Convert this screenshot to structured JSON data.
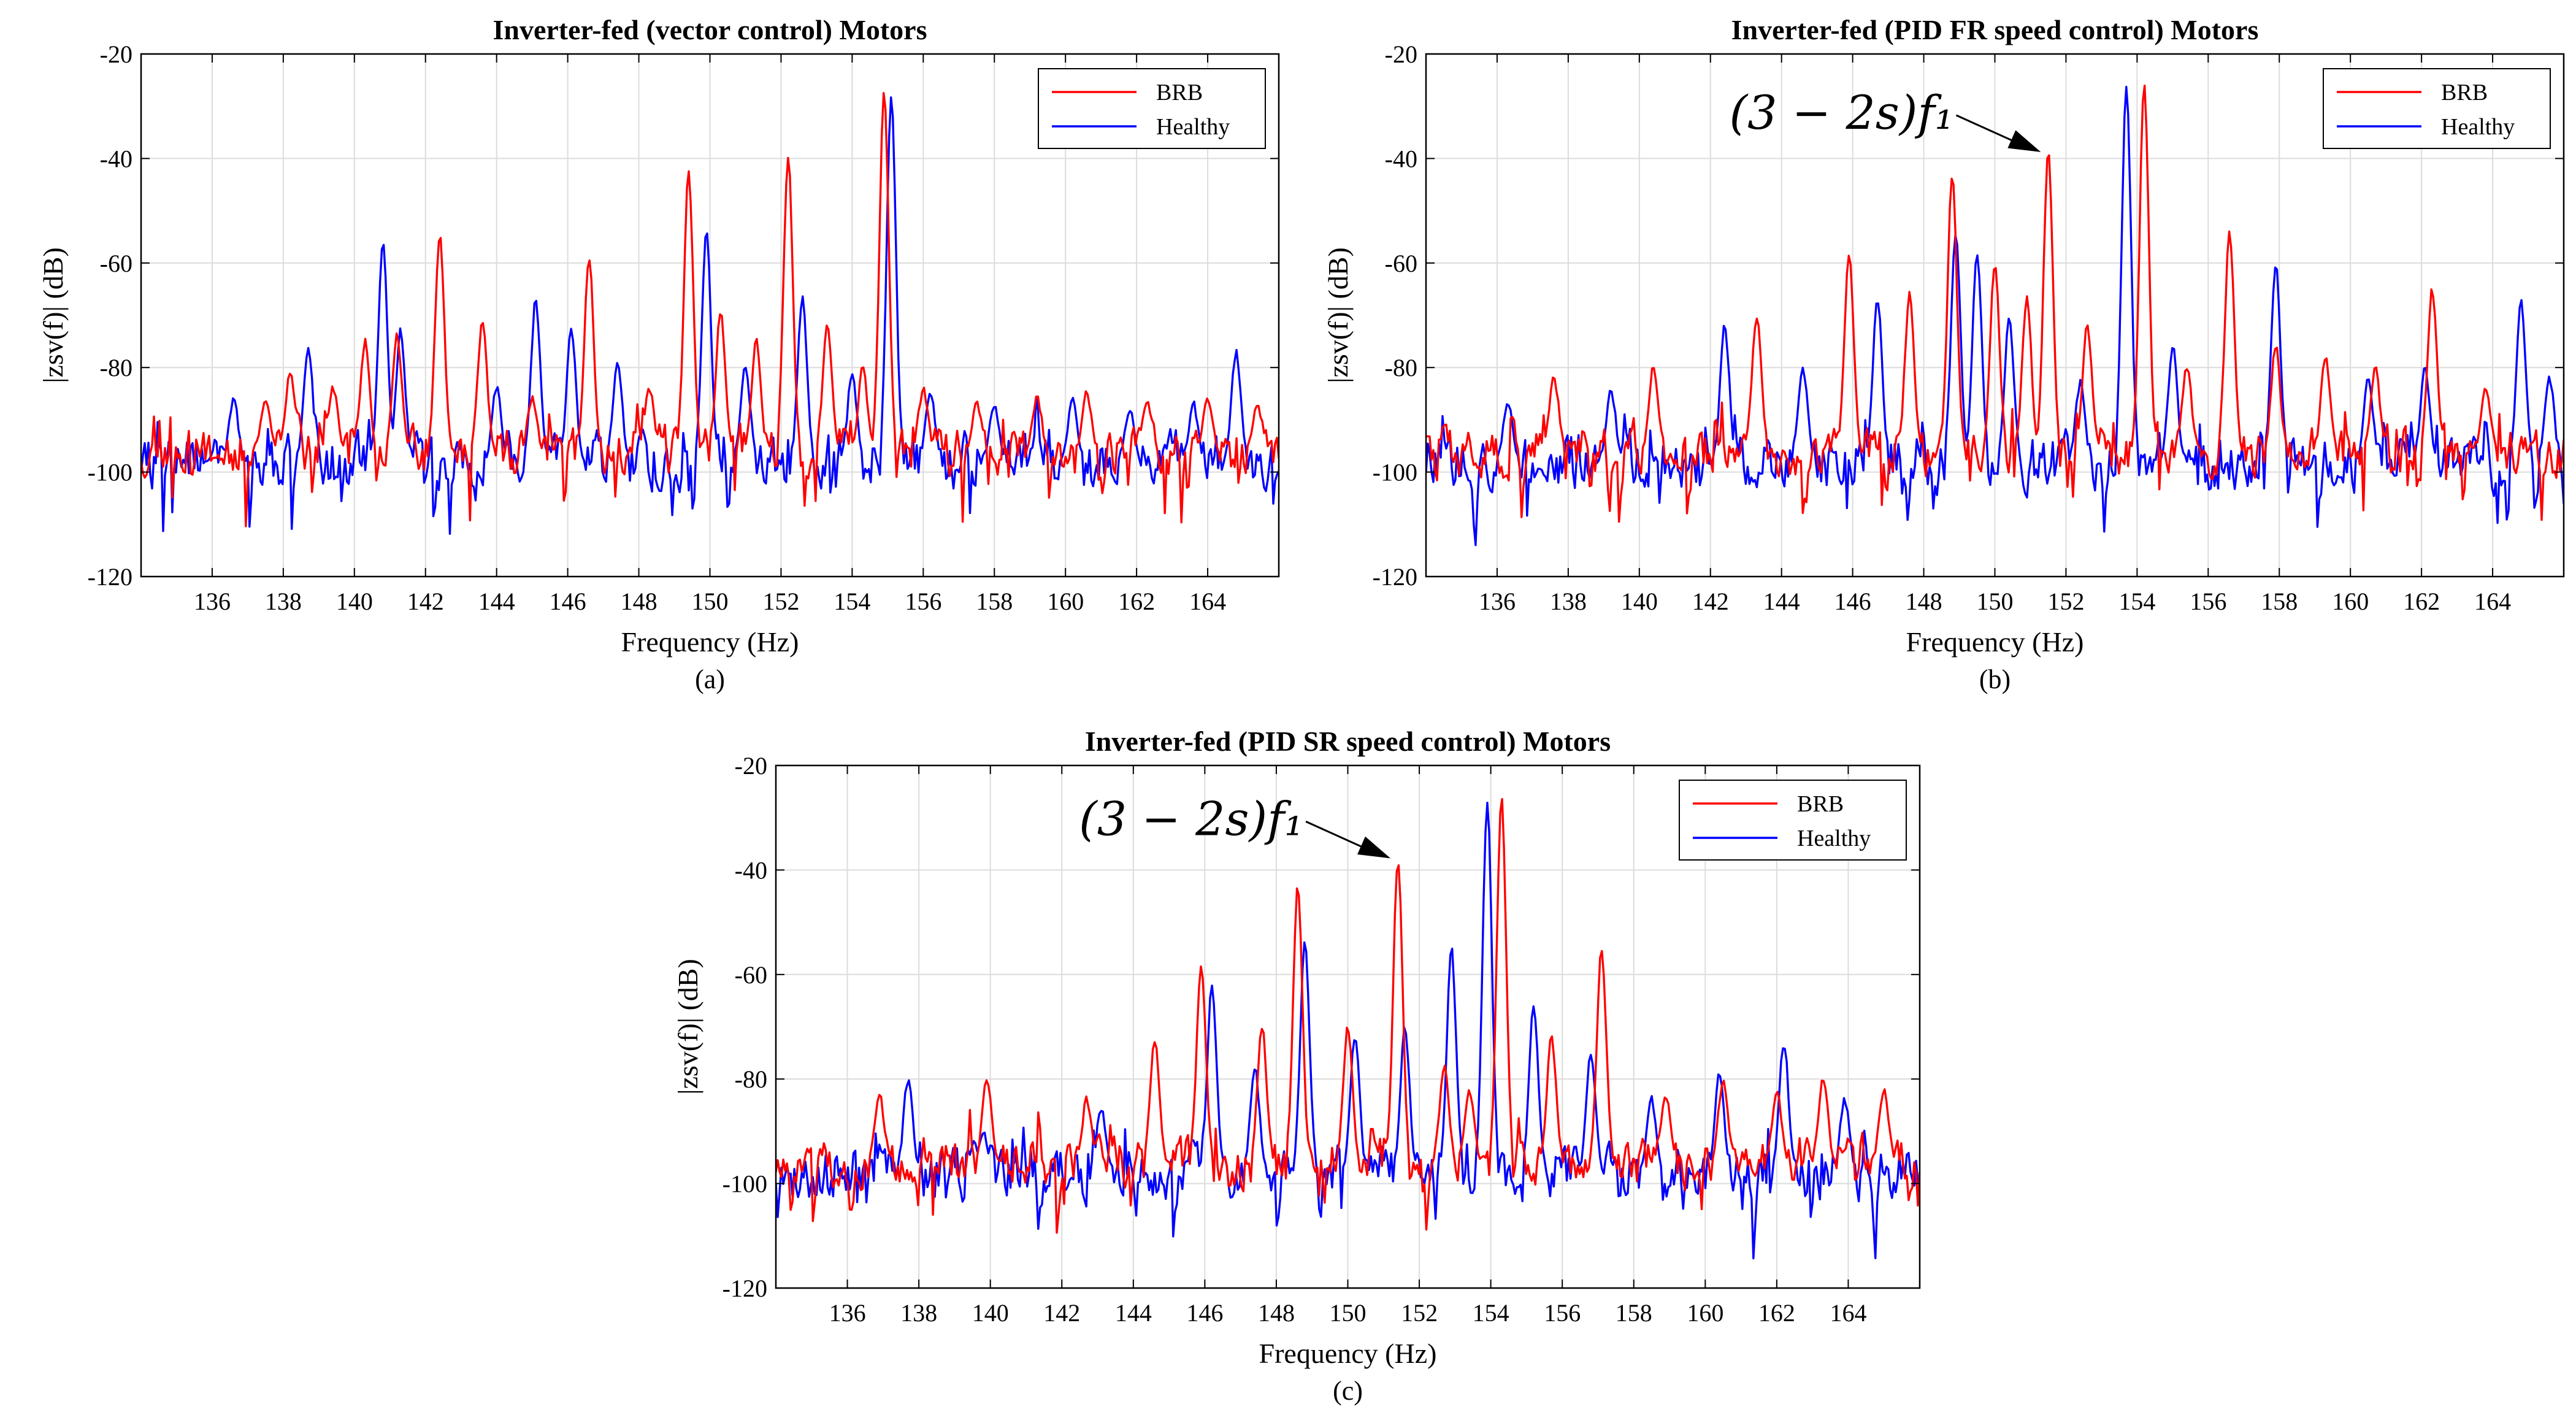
{
  "chart_data": [
    {
      "type": "line",
      "panel_label": "(a)",
      "title": "Inverter-fed (vector control) Motors",
      "xlabel": "Frequency (Hz)",
      "ylabel": "|zsv(f)| (dB)",
      "xlim": [
        134,
        166
      ],
      "ylim": [
        -120,
        -20
      ],
      "xticks": [
        "136",
        "138",
        "140",
        "142",
        "144",
        "146",
        "148",
        "150",
        "152",
        "154",
        "156",
        "158",
        "160",
        "162",
        "164"
      ],
      "yticks": [
        "-20",
        "-40",
        "-60",
        "-80",
        "-100",
        "-120"
      ],
      "grid": true,
      "legend": {
        "position": "top-right",
        "entries": [
          "BRB",
          "Healthy"
        ]
      },
      "annotation": null,
      "series": [
        {
          "name": "BRB",
          "color": "#ff0000",
          "baseline": -96,
          "noise_amp": 7,
          "seed": 11,
          "peaks": [
            [
              137.5,
              -87
            ],
            [
              138.2,
              -81
            ],
            [
              139.4,
              -84
            ],
            [
              140.3,
              -75
            ],
            [
              141.2,
              -74
            ],
            [
              142.4,
              -55
            ],
            [
              143.6,
              -71
            ],
            [
              145.0,
              -86
            ],
            [
              146.6,
              -59
            ],
            [
              148.3,
              -84
            ],
            [
              149.4,
              -43
            ],
            [
              150.3,
              -69
            ],
            [
              151.3,
              -75
            ],
            [
              152.2,
              -40
            ],
            [
              153.3,
              -72
            ],
            [
              154.3,
              -80
            ],
            [
              154.9,
              -27
            ],
            [
              156.0,
              -84
            ],
            [
              157.5,
              -87
            ],
            [
              159.2,
              -86
            ],
            [
              160.6,
              -85
            ],
            [
              162.3,
              -87
            ],
            [
              164.0,
              -86
            ],
            [
              165.4,
              -87
            ]
          ]
        },
        {
          "name": "Healthy",
          "color": "#0000ff",
          "baseline": -98,
          "noise_amp": 8,
          "seed": 29,
          "peaks": [
            [
              136.6,
              -86
            ],
            [
              138.7,
              -76
            ],
            [
              140.8,
              -56
            ],
            [
              141.3,
              -73
            ],
            [
              144.0,
              -84
            ],
            [
              145.1,
              -67
            ],
            [
              146.1,
              -73
            ],
            [
              147.4,
              -79
            ],
            [
              149.9,
              -54
            ],
            [
              151.0,
              -80
            ],
            [
              152.6,
              -67
            ],
            [
              154.0,
              -81
            ],
            [
              155.1,
              -28
            ],
            [
              156.2,
              -85
            ],
            [
              158.0,
              -87
            ],
            [
              160.2,
              -86
            ],
            [
              161.8,
              -88
            ],
            [
              163.6,
              -87
            ],
            [
              164.8,
              -77
            ]
          ]
        }
      ]
    },
    {
      "type": "line",
      "panel_label": "(b)",
      "title": "Inverter-fed (PID FR speed control) Motors",
      "xlabel": "Frequency (Hz)",
      "ylabel": "|zsv(f)| (dB)",
      "xlim": [
        134,
        166
      ],
      "ylim": [
        -120,
        -20
      ],
      "xticks": [
        "136",
        "138",
        "140",
        "142",
        "144",
        "146",
        "148",
        "150",
        "152",
        "154",
        "156",
        "158",
        "160",
        "162",
        "164"
      ],
      "yticks": [
        "-20",
        "-40",
        "-60",
        "-80",
        "-100",
        "-120"
      ],
      "grid": true,
      "legend": {
        "position": "top-right",
        "entries": [
          "BRB",
          "Healthy"
        ]
      },
      "annotation": {
        "text": "(3 − 2s)f₁",
        "x": 151.5,
        "y": -39
      },
      "series": [
        {
          "name": "BRB",
          "color": "#ff0000",
          "baseline": -96,
          "noise_amp": 7,
          "seed": 47,
          "peaks": [
            [
              137.6,
              -82
            ],
            [
              140.4,
              -80
            ],
            [
              143.3,
              -70
            ],
            [
              145.9,
              -58
            ],
            [
              147.6,
              -66
            ],
            [
              148.8,
              -43
            ],
            [
              150.0,
              -60
            ],
            [
              150.9,
              -67
            ],
            [
              151.5,
              -39
            ],
            [
              152.6,
              -72
            ],
            [
              154.2,
              -26
            ],
            [
              155.4,
              -80
            ],
            [
              156.6,
              -54
            ],
            [
              157.9,
              -76
            ],
            [
              159.3,
              -78
            ],
            [
              160.7,
              -80
            ],
            [
              162.3,
              -65
            ],
            [
              163.8,
              -84
            ],
            [
              164.6,
              -110
            ]
          ]
        },
        {
          "name": "Healthy",
          "color": "#0000ff",
          "baseline": -98,
          "noise_amp": 8,
          "seed": 63,
          "peaks": [
            [
              136.3,
              -87
            ],
            [
              139.2,
              -84
            ],
            [
              142.4,
              -72
            ],
            [
              144.6,
              -80
            ],
            [
              146.7,
              -67
            ],
            [
              148.9,
              -54
            ],
            [
              149.5,
              -58
            ],
            [
              150.4,
              -71
            ],
            [
              152.4,
              -83
            ],
            [
              153.7,
              -26
            ],
            [
              155.0,
              -76
            ],
            [
              157.9,
              -60
            ],
            [
              160.5,
              -82
            ],
            [
              162.1,
              -80
            ],
            [
              164.8,
              -67
            ],
            [
              165.6,
              -82
            ]
          ]
        }
      ]
    },
    {
      "type": "line",
      "panel_label": "(c)",
      "title": "Inverter-fed (PID SR speed control) Motors",
      "xlabel": "Frequency (Hz)",
      "ylabel": "|zsv(f)| (dB)",
      "xlim": [
        134,
        166
      ],
      "ylim": [
        -120,
        -20
      ],
      "xticks": [
        "136",
        "138",
        "140",
        "142",
        "144",
        "146",
        "148",
        "150",
        "152",
        "154",
        "156",
        "158",
        "160",
        "162",
        "164"
      ],
      "yticks": [
        "-20",
        "-40",
        "-60",
        "-80",
        "-100",
        "-120"
      ],
      "grid": true,
      "legend": {
        "position": "top-right",
        "entries": [
          "BRB",
          "Healthy"
        ]
      },
      "annotation": {
        "text": "(3 − 2s)f₁",
        "x": 151.4,
        "y": -38
      },
      "series": [
        {
          "name": "BRB",
          "color": "#ff0000",
          "baseline": -96,
          "noise_amp": 7,
          "seed": 81,
          "peaks": [
            [
              136.9,
              -83
            ],
            [
              139.9,
              -80
            ],
            [
              142.7,
              -84
            ],
            [
              144.6,
              -73
            ],
            [
              145.9,
              -59
            ],
            [
              147.6,
              -70
            ],
            [
              148.6,
              -43
            ],
            [
              150.0,
              -70
            ],
            [
              151.4,
              -38
            ],
            [
              152.7,
              -78
            ],
            [
              153.4,
              -82
            ],
            [
              154.3,
              -26
            ],
            [
              155.7,
              -72
            ],
            [
              157.1,
              -55
            ],
            [
              158.9,
              -83
            ],
            [
              160.5,
              -80
            ],
            [
              162.0,
              -82
            ],
            [
              163.3,
              -80
            ],
            [
              165.0,
              -82
            ]
          ]
        },
        {
          "name": "Healthy",
          "color": "#0000ff",
          "baseline": -98,
          "noise_amp": 8,
          "seed": 97,
          "peaks": [
            [
              137.7,
              -80
            ],
            [
              139.8,
              -90
            ],
            [
              143.1,
              -86
            ],
            [
              146.2,
              -62
            ],
            [
              147.4,
              -78
            ],
            [
              148.8,
              -54
            ],
            [
              150.2,
              -72
            ],
            [
              151.6,
              -70
            ],
            [
              152.9,
              -55
            ],
            [
              153.9,
              -27
            ],
            [
              155.2,
              -66
            ],
            [
              156.8,
              -75
            ],
            [
              158.5,
              -84
            ],
            [
              160.4,
              -79
            ],
            [
              162.2,
              -73
            ],
            [
              163.9,
              -84
            ]
          ]
        }
      ]
    }
  ]
}
